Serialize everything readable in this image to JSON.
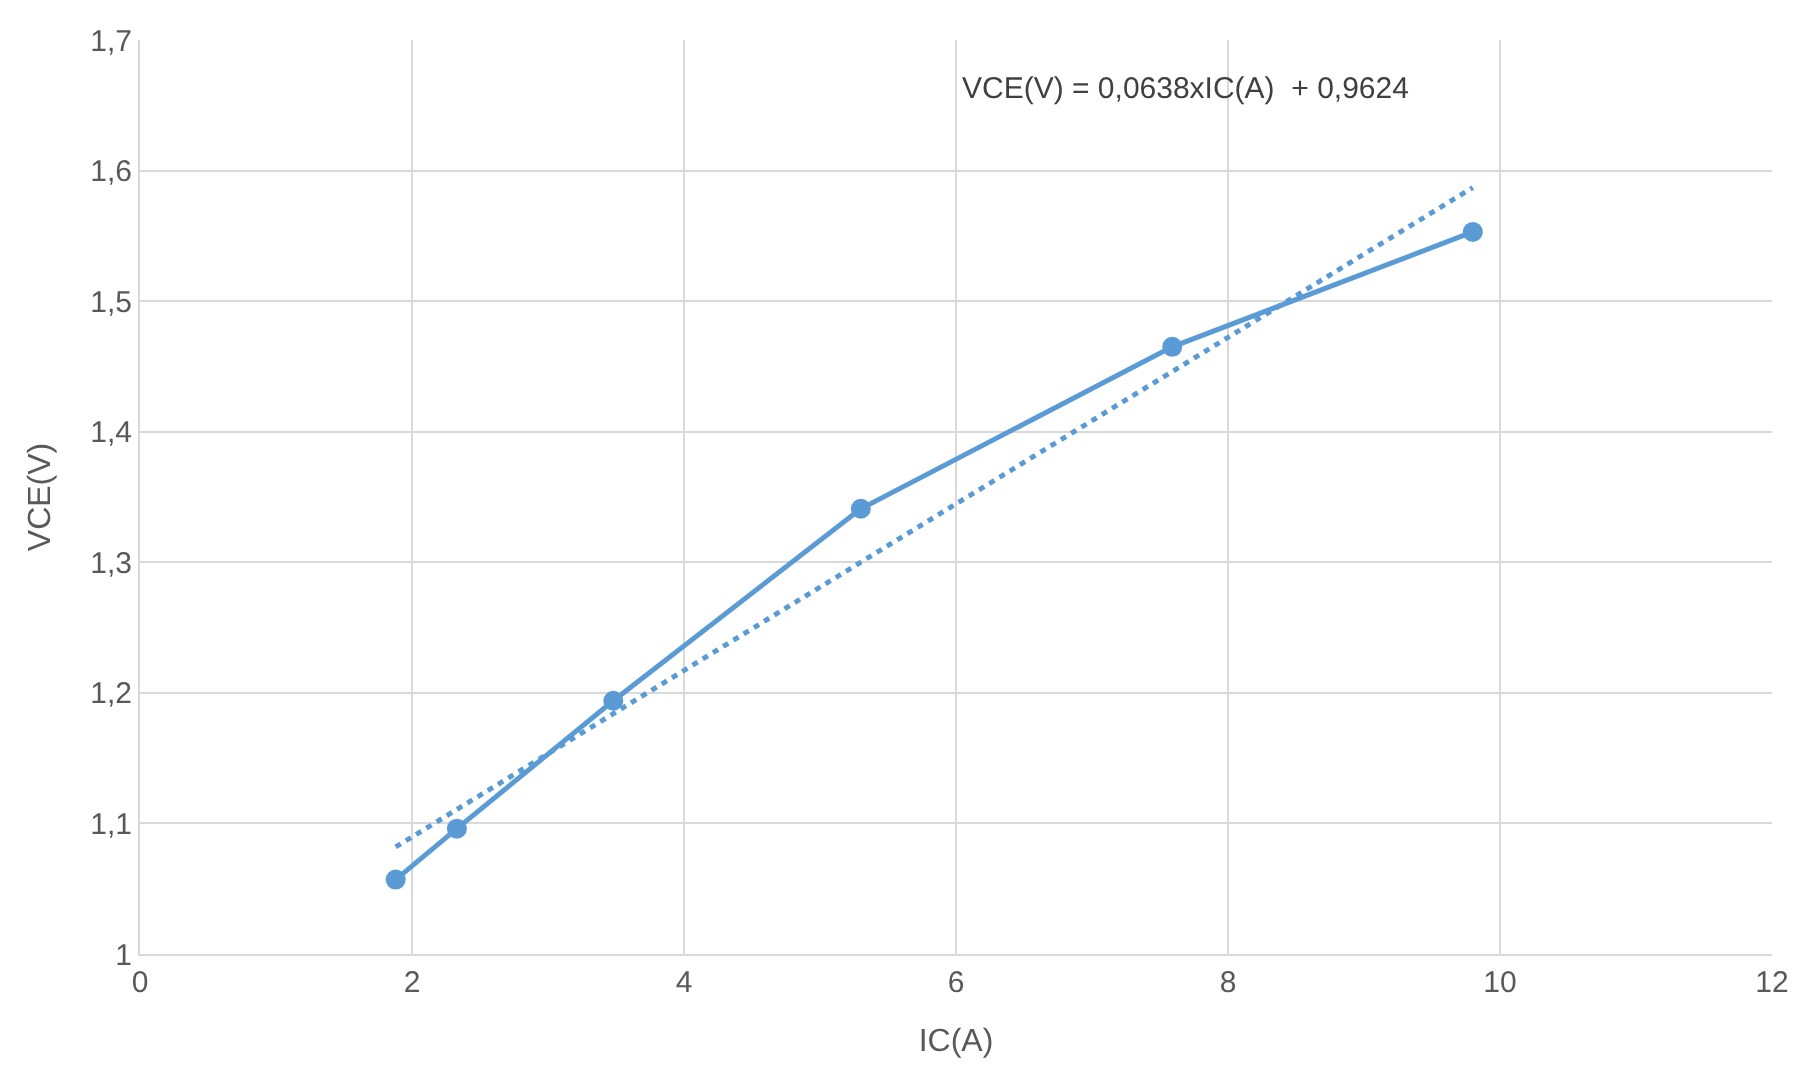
{
  "chart_data": {
    "type": "line",
    "xlabel": "IC(A)",
    "ylabel": "VCE(V)",
    "annotations": [
      "VCE(V) = 0,0638xIC(A)  + 0,9624"
    ],
    "series": [
      {
        "color": "#5b9bd5",
        "x": [
          1.88,
          2.33,
          3.48,
          5.3,
          7.59,
          9.8
        ],
        "values": [
          1.057,
          1.096,
          1.194,
          1.341,
          1.465,
          1.553
        ],
        "marker": "circle",
        "line_style": "solid"
      },
      {
        "color": "#5b9bd5",
        "x": [
          1.88,
          9.8
        ],
        "values": [
          1.082,
          1.587
        ],
        "marker": "none",
        "line_style": "dotted"
      }
    ],
    "xlim": [
      0,
      12
    ],
    "xticks": [
      0,
      2,
      4,
      6,
      8,
      10,
      12
    ],
    "ylim": [
      1,
      1.7
    ],
    "yticks": [
      1,
      {
        "value": 1.1,
        "label": "1,1"
      },
      {
        "value": 1.2,
        "label": "1,2"
      },
      {
        "value": 1.3,
        "label": "1,3"
      },
      {
        "value": 1.4,
        "label": "1,4"
      },
      {
        "value": 1.5,
        "label": "1,5"
      },
      {
        "value": 1.6,
        "label": "1,6"
      },
      {
        "value": 1.7,
        "label": "1,7"
      }
    ],
    "grid": true
  }
}
